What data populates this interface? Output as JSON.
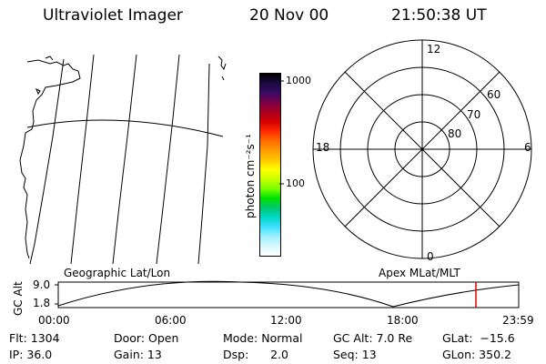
{
  "header": {
    "instrument": "Ultraviolet Imager",
    "date": "20 Nov 00",
    "time": "21:50:38 UT"
  },
  "colorbar": {
    "unit_label": "photon cm⁻²s⁻¹",
    "ticks": [
      "1000",
      "100"
    ],
    "colors": [
      "#000000",
      "#1a0a40",
      "#3a0a66",
      "#7a0048",
      "#a80020",
      "#d40000",
      "#ff2a00",
      "#ff6a00",
      "#ff9a00",
      "#ffc800",
      "#ffff00",
      "#c8ff00",
      "#7aff00",
      "#00e000",
      "#00c870",
      "#00d8c8",
      "#40e0ff",
      "#a0f0ff",
      "#d8f8ff",
      "#ffffff"
    ]
  },
  "polar_plot": {
    "mlt_labels": [
      "12",
      "6",
      "0",
      "18"
    ],
    "lat_labels": [
      "60",
      "70",
      "80"
    ]
  },
  "timeline": {
    "left_label": "Geographic Lat/Lon",
    "right_label": "Apex MLat/MLT",
    "axis_title": "GC Alt",
    "y_ticks": [
      "9.0",
      "1.8"
    ],
    "x_ticks": [
      "00:00",
      "06:00",
      "12:00",
      "18:00",
      "23:59"
    ],
    "marker_time": "21:50",
    "marker_color": "#e00000"
  },
  "info": {
    "flt": "Flt: 1304",
    "ip": "IP: 36.0",
    "door": "Door: Open",
    "gain": "Gain: 13",
    "mode": "Mode: Normal",
    "dsp": "Dsp:      2.0",
    "gc_alt": "GC Alt: 7.0 Re",
    "seq": "Seq: 13",
    "glat": "GLat:  −15.6",
    "glon": "GLon: 350.2"
  }
}
